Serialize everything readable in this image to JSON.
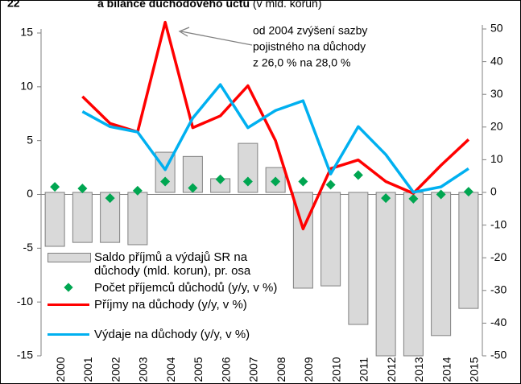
{
  "chart_data": {
    "type": "combo",
    "figure_number": "22",
    "title": "a bilance důchodového účtu",
    "title_unit": "(v mld. korun)",
    "annotation": [
      "od 2004 zvýšení sazby",
      "pojistného na důchody",
      "z 26,0 % na 28,0 %"
    ],
    "categories": [
      "2000",
      "2001",
      "2002",
      "2003",
      "2004",
      "2005",
      "2006",
      "2007",
      "2008",
      "2009",
      "2010",
      "2011",
      "2012",
      "2013",
      "2014",
      "2015"
    ],
    "ylim": [
      -15,
      15
    ],
    "yticks": [
      -15,
      -10,
      -5,
      0,
      5,
      10,
      15
    ],
    "y2lim": [
      -50,
      50
    ],
    "y2ticks": [
      -50,
      -40,
      -30,
      -20,
      -10,
      0,
      10,
      20,
      30,
      40,
      50
    ],
    "series": [
      {
        "name": "Saldo příjmů a výdajů SR na důchody (mld. korun), pr. osa",
        "type": "bar",
        "axis": "y2",
        "color": "#d9d9d9",
        "values": [
          -16.5,
          -15.3,
          -15.3,
          -16,
          12.3,
          11,
          4.2,
          15,
          7.6,
          -29.3,
          -28.6,
          -40.4,
          -50,
          -50,
          -43.8,
          -35.5
        ]
      },
      {
        "name": "Počet příjemců důchodů (y/y, v %)",
        "type": "scatter",
        "color": "#00a651",
        "values": [
          0.7,
          0.55,
          -0.35,
          0.35,
          1.2,
          0.6,
          1.4,
          1.2,
          1.2,
          1.2,
          0.9,
          1.8,
          -0.35,
          -0.4,
          0,
          0.25
        ]
      },
      {
        "name": "Příjmy na důchody (y/y, v %)",
        "type": "line",
        "color": "#ff0000",
        "values": [
          null,
          9.1,
          6.6,
          5.8,
          16,
          6.2,
          7.3,
          10.1,
          5.0,
          -3.2,
          2.4,
          3.2,
          1.2,
          0.1,
          2.7,
          5.1
        ]
      },
      {
        "name": "Výdaje na důchody (y/y, v %)",
        "type": "line",
        "color": "#00b0f0",
        "values": [
          null,
          7.7,
          6.3,
          5.8,
          2.3,
          7.1,
          10.2,
          6.2,
          7.8,
          8.7,
          1.9,
          6.3,
          3.7,
          0.2,
          0.7,
          2.4
        ]
      }
    ]
  }
}
